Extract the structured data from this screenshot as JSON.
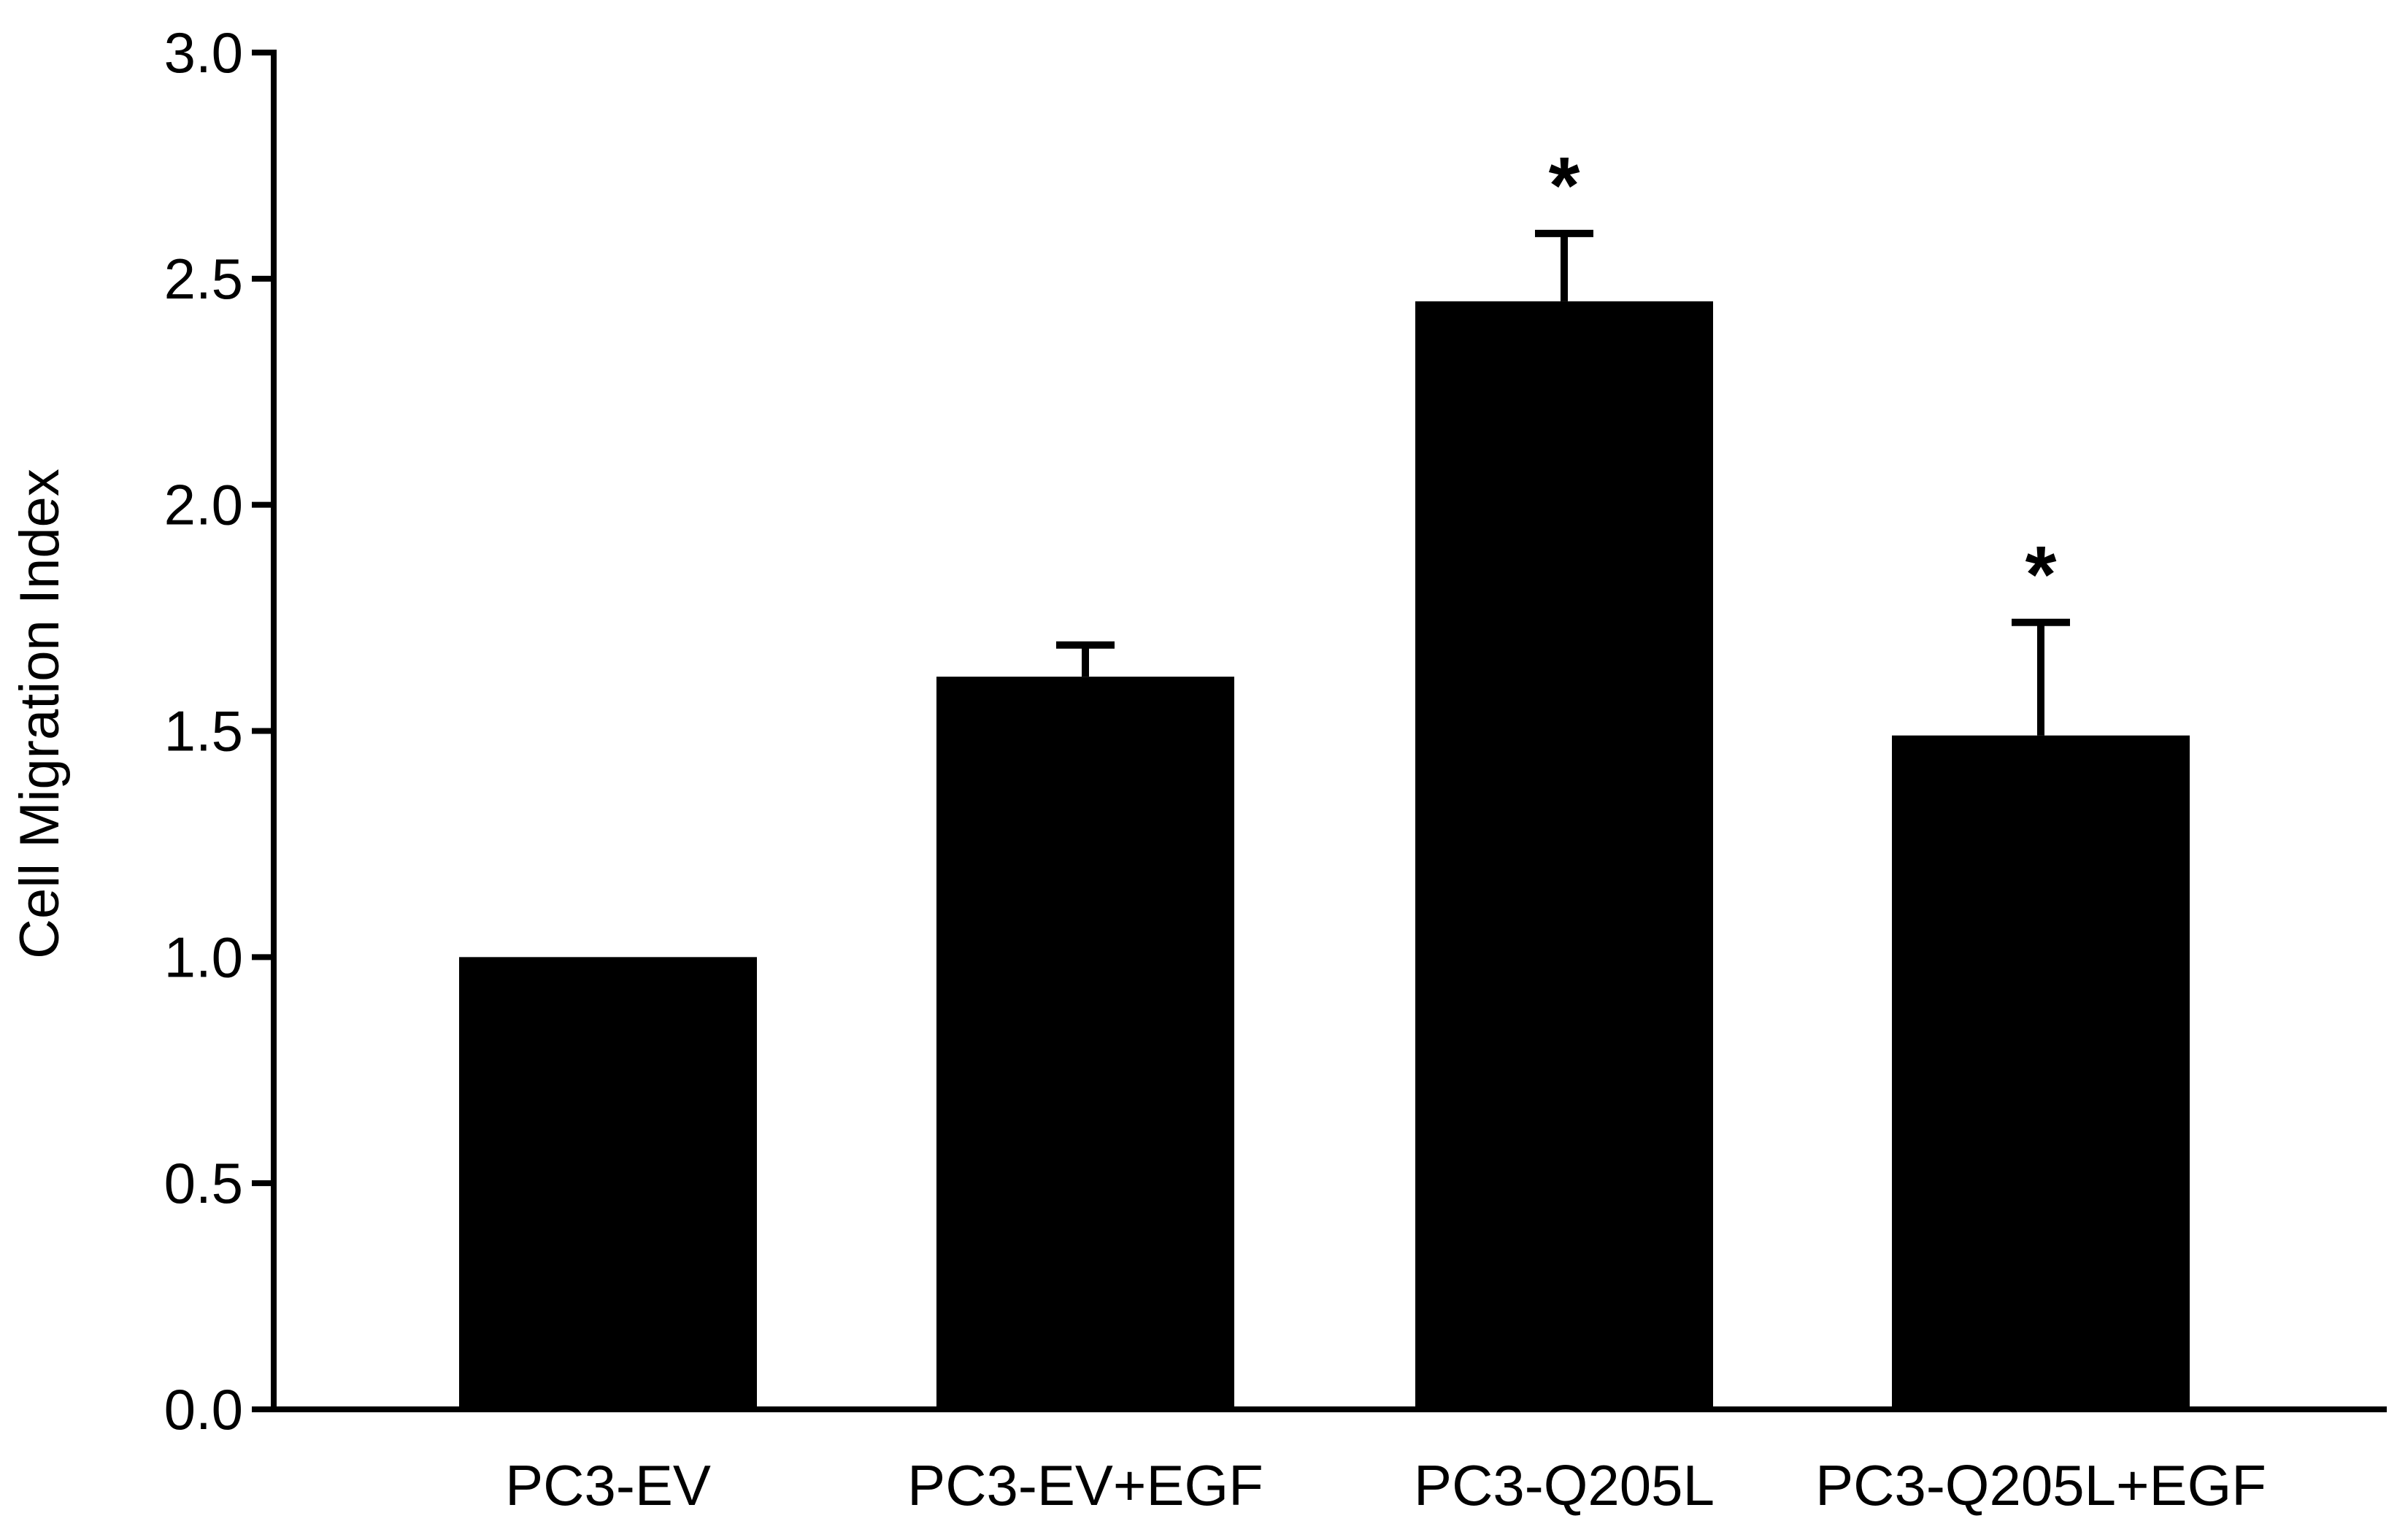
{
  "chart_data": {
    "type": "bar",
    "categories": [
      "PC3-EV",
      "PC3-EV+EGF",
      "PC3-Q205L",
      "PC3-Q205L+EGF"
    ],
    "values": [
      1.0,
      1.62,
      2.45,
      1.49
    ],
    "error_bars": [
      0.0,
      0.07,
      0.15,
      0.25
    ],
    "significance": [
      "",
      "*",
      "*"
    ],
    "annotations": [
      "",
      "",
      "*",
      "*"
    ],
    "xlabel": "",
    "ylabel": "Cell Migration Index",
    "ylim": [
      0,
      3.0
    ],
    "yticks": [
      "0.0",
      "0.5",
      "1.0",
      "1.5",
      "2.0",
      "2.5",
      "3.0"
    ],
    "grid": false,
    "bar_color": "#000000"
  }
}
